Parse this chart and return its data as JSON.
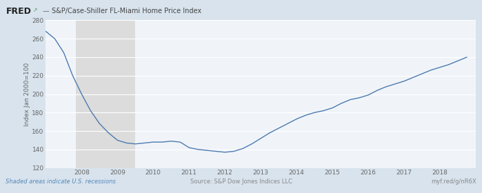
{
  "title": "S&P/Case-Shiller FL-Miami Home Price Index",
  "ylabel": "Index Jan 2000=100",
  "footer_left": "Shaded areas indicate U.S. recessions",
  "footer_center": "Source: S&P Dow Jones Indices LLC",
  "footer_right": "myf.red/g/nR6X",
  "line_color": "#4c7ab0",
  "recession_color": "#dcdcdc",
  "bg_color": "#d8e3ed",
  "plot_bg_color": "#f0f4f9",
  "grid_color": "#ffffff",
  "tick_color": "#666666",
  "ylim": [
    120,
    280
  ],
  "yticks": [
    120,
    140,
    160,
    180,
    200,
    220,
    240,
    260,
    280
  ],
  "recession_bands": [
    [
      2007.833,
      2009.5
    ]
  ],
  "x_data": [
    2007.0,
    2007.25,
    2007.5,
    2007.75,
    2008.0,
    2008.25,
    2008.5,
    2008.75,
    2009.0,
    2009.25,
    2009.5,
    2009.75,
    2010.0,
    2010.25,
    2010.5,
    2010.75,
    2011.0,
    2011.25,
    2011.5,
    2011.75,
    2012.0,
    2012.25,
    2012.5,
    2012.75,
    2013.0,
    2013.25,
    2013.5,
    2013.75,
    2014.0,
    2014.25,
    2014.5,
    2014.75,
    2015.0,
    2015.25,
    2015.5,
    2015.75,
    2016.0,
    2016.25,
    2016.5,
    2016.75,
    2017.0,
    2017.25,
    2017.5,
    2017.75,
    2018.0,
    2018.25,
    2018.5,
    2018.75
  ],
  "y_data": [
    268,
    260,
    245,
    220,
    200,
    182,
    168,
    158,
    150,
    147,
    146,
    147,
    148,
    148,
    149,
    148,
    142,
    140,
    139,
    138,
    137,
    138,
    141,
    146,
    152,
    158,
    163,
    168,
    173,
    177,
    180,
    182,
    185,
    190,
    194,
    196,
    199,
    204,
    208,
    211,
    214,
    218,
    222,
    226,
    229,
    232,
    236,
    240
  ],
  "xticks": [
    2008,
    2009,
    2010,
    2011,
    2012,
    2013,
    2014,
    2015,
    2016,
    2017,
    2018
  ],
  "xlim": [
    2007.0,
    2019.0
  ]
}
